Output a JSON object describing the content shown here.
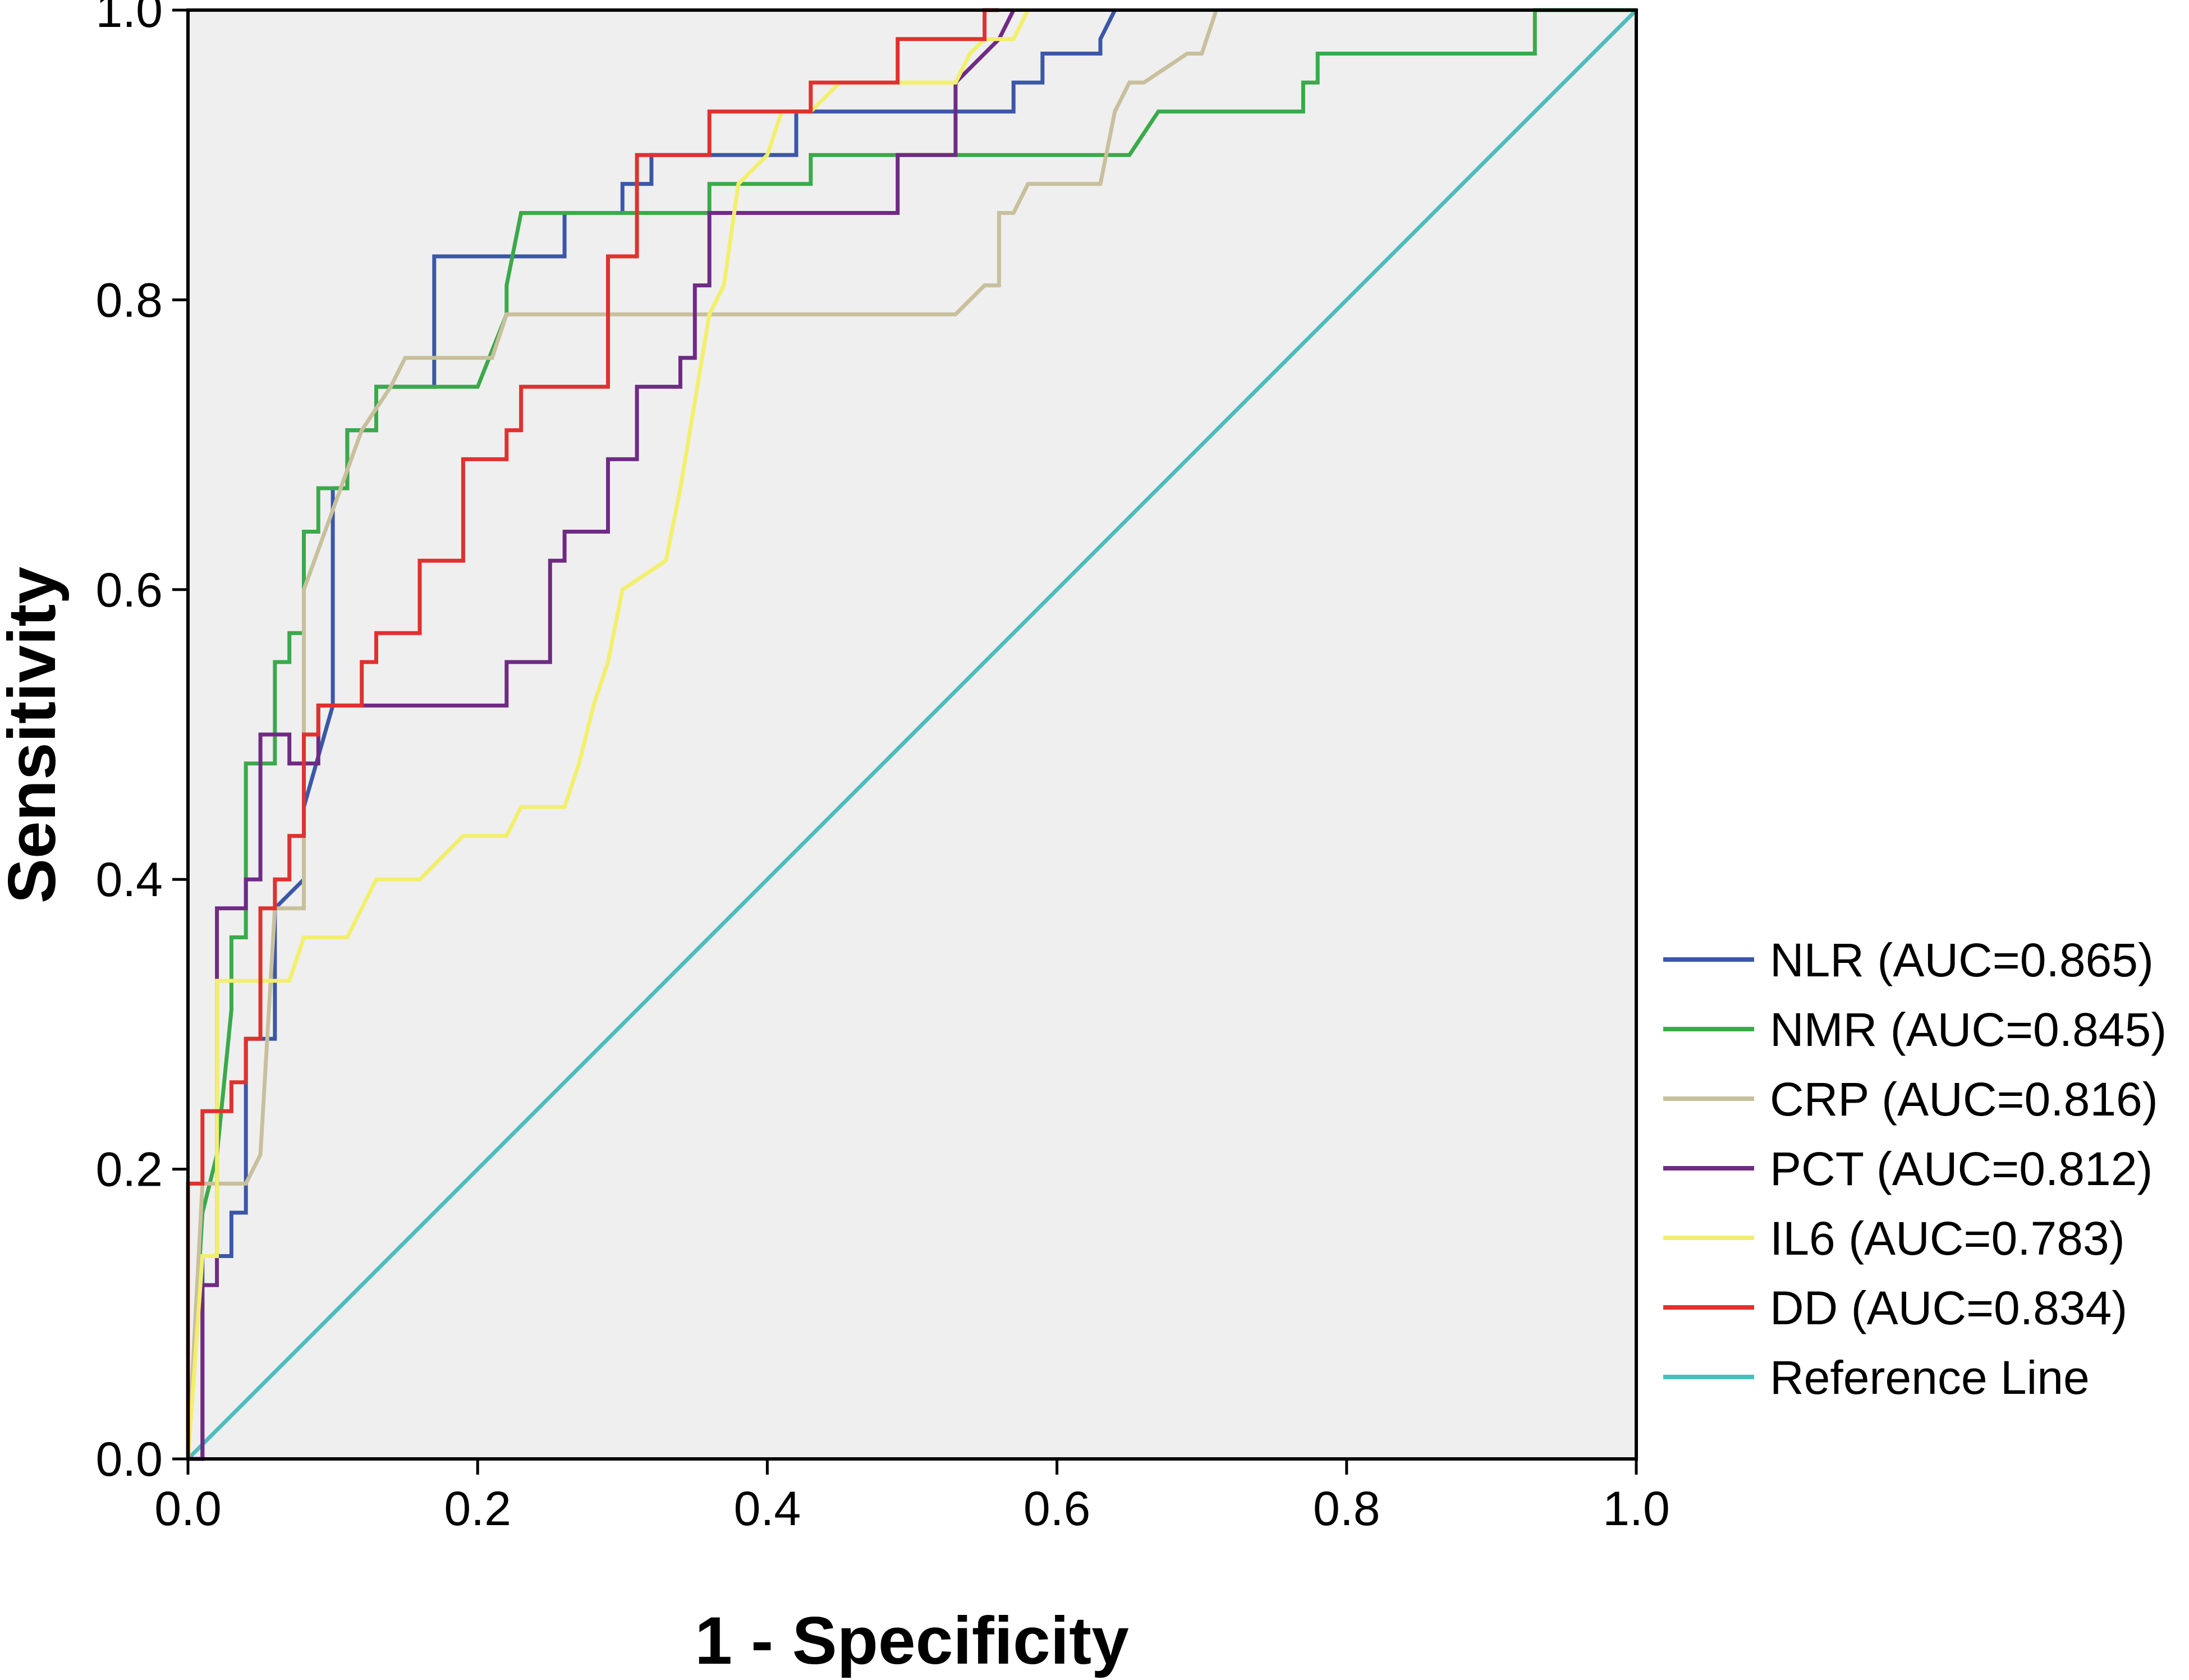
{
  "chart_data": {
    "type": "line",
    "title": "",
    "xlabel": "1 - Specificity",
    "ylabel": "Sensitivity",
    "xlim": [
      0,
      1
    ],
    "ylim": [
      0,
      1
    ],
    "xticks": [
      "0.0",
      "0.2",
      "0.4",
      "0.6",
      "0.8",
      "1.0"
    ],
    "yticks": [
      "0.0",
      "0.2",
      "0.4",
      "0.6",
      "0.8",
      "1.0"
    ],
    "grid": false,
    "legend_position": "bottom-right, outside plot",
    "background": "#efefef",
    "series": [
      {
        "name": "NLR (AUC=0.865)",
        "color": "#3b57a8",
        "x": [
          0,
          0.01,
          0.01,
          0.03,
          0.03,
          0.04,
          0.04,
          0.06,
          0.06,
          0.08,
          0.08,
          0.1,
          0.1,
          0.11,
          0.11,
          0.13,
          0.13,
          0.17,
          0.17,
          0.26,
          0.26,
          0.3,
          0.3,
          0.32,
          0.32,
          0.42,
          0.42,
          0.57,
          0.57,
          0.59,
          0.59,
          0.63,
          0.63,
          0.64
        ],
        "y": [
          0,
          0,
          0.14,
          0.14,
          0.17,
          0.17,
          0.29,
          0.29,
          0.38,
          0.4,
          0.45,
          0.52,
          0.67,
          0.67,
          0.71,
          0.71,
          0.74,
          0.74,
          0.83,
          0.83,
          0.86,
          0.86,
          0.88,
          0.88,
          0.9,
          0.9,
          0.93,
          0.93,
          0.95,
          0.95,
          0.97,
          0.97,
          0.98,
          1.0
        ]
      },
      {
        "name": "NMR (AUC=0.845)",
        "color": "#3aaa4a",
        "x": [
          0,
          0.01,
          0.01,
          0.02,
          0.02,
          0.03,
          0.03,
          0.04,
          0.04,
          0.06,
          0.06,
          0.07,
          0.07,
          0.08,
          0.08,
          0.09,
          0.09,
          0.11,
          0.11,
          0.13,
          0.13,
          0.16,
          0.16,
          0.2,
          0.22,
          0.22,
          0.23,
          0.36,
          0.36,
          0.43,
          0.43,
          0.65,
          0.67,
          0.77,
          0.77,
          0.78,
          0.78,
          0.93,
          0.93,
          1.0
        ],
        "y": [
          0,
          0.17,
          0.17,
          0.21,
          0.21,
          0.31,
          0.36,
          0.36,
          0.48,
          0.48,
          0.55,
          0.55,
          0.57,
          0.57,
          0.64,
          0.64,
          0.67,
          0.67,
          0.71,
          0.71,
          0.74,
          0.74,
          0.74,
          0.74,
          0.79,
          0.81,
          0.86,
          0.86,
          0.88,
          0.88,
          0.9,
          0.9,
          0.93,
          0.93,
          0.95,
          0.95,
          0.97,
          0.97,
          1.0,
          1.0
        ]
      },
      {
        "name": "CRP (AUC=0.816)",
        "color": "#c8c09c",
        "x": [
          0,
          0.01,
          0.01,
          0.04,
          0.05,
          0.06,
          0.08,
          0.08,
          0.12,
          0.12,
          0.14,
          0.15,
          0.21,
          0.22,
          0.53,
          0.55,
          0.56,
          0.56,
          0.57,
          0.58,
          0.63,
          0.64,
          0.65,
          0.66,
          0.69,
          0.7,
          0.71
        ],
        "y": [
          0,
          0.19,
          0.19,
          0.19,
          0.21,
          0.38,
          0.38,
          0.6,
          0.71,
          0.71,
          0.74,
          0.76,
          0.76,
          0.79,
          0.79,
          0.81,
          0.81,
          0.86,
          0.86,
          0.88,
          0.88,
          0.93,
          0.95,
          0.95,
          0.97,
          0.97,
          1.0
        ]
      },
      {
        "name": "PCT (AUC=0.812)",
        "color": "#6f2b84",
        "x": [
          0,
          0.01,
          0.01,
          0.02,
          0.02,
          0.04,
          0.04,
          0.05,
          0.05,
          0.07,
          0.07,
          0.09,
          0.09,
          0.1,
          0.1,
          0.22,
          0.22,
          0.25,
          0.25,
          0.26,
          0.26,
          0.29,
          0.29,
          0.31,
          0.31,
          0.34,
          0.34,
          0.35,
          0.35,
          0.36,
          0.36,
          0.49,
          0.49,
          0.53,
          0.53,
          0.56,
          0.57
        ],
        "y": [
          0,
          0,
          0.12,
          0.12,
          0.38,
          0.38,
          0.4,
          0.4,
          0.5,
          0.5,
          0.48,
          0.48,
          0.52,
          0.52,
          0.52,
          0.52,
          0.55,
          0.55,
          0.62,
          0.62,
          0.64,
          0.64,
          0.69,
          0.69,
          0.74,
          0.74,
          0.76,
          0.76,
          0.81,
          0.81,
          0.86,
          0.86,
          0.9,
          0.9,
          0.95,
          0.98,
          1.0
        ]
      },
      {
        "name": "IL6 (AUC=0.783)",
        "color": "#f2ef6d",
        "x": [
          0,
          0.01,
          0.02,
          0.02,
          0.04,
          0.07,
          0.08,
          0.11,
          0.12,
          0.13,
          0.16,
          0.19,
          0.22,
          0.23,
          0.26,
          0.27,
          0.28,
          0.29,
          0.3,
          0.33,
          0.34,
          0.36,
          0.37,
          0.38,
          0.4,
          0.4,
          0.41,
          0.43,
          0.45,
          0.46,
          0.47,
          0.53,
          0.54,
          0.55,
          0.57,
          0.58
        ],
        "y": [
          0,
          0.14,
          0.14,
          0.33,
          0.33,
          0.33,
          0.36,
          0.36,
          0.38,
          0.4,
          0.4,
          0.43,
          0.43,
          0.45,
          0.45,
          0.48,
          0.52,
          0.55,
          0.6,
          0.62,
          0.67,
          0.79,
          0.81,
          0.88,
          0.9,
          0.9,
          0.93,
          0.93,
          0.95,
          0.95,
          0.95,
          0.95,
          0.97,
          0.98,
          0.98,
          1.0
        ]
      },
      {
        "name": "DD (AUC=0.834)",
        "color": "#e0312f",
        "x": [
          0,
          0,
          0.01,
          0.01,
          0.03,
          0.03,
          0.04,
          0.04,
          0.05,
          0.05,
          0.06,
          0.06,
          0.07,
          0.07,
          0.08,
          0.08,
          0.09,
          0.09,
          0.12,
          0.12,
          0.13,
          0.13,
          0.15,
          0.16,
          0.16,
          0.19,
          0.19,
          0.22,
          0.22,
          0.23,
          0.23,
          0.29,
          0.29,
          0.31,
          0.31,
          0.36,
          0.36,
          0.43,
          0.43,
          0.49,
          0.49,
          0.55,
          0.55,
          0.56
        ],
        "y": [
          0,
          0.19,
          0.19,
          0.24,
          0.24,
          0.26,
          0.26,
          0.29,
          0.29,
          0.38,
          0.38,
          0.4,
          0.4,
          0.43,
          0.43,
          0.5,
          0.5,
          0.52,
          0.52,
          0.55,
          0.55,
          0.57,
          0.57,
          0.57,
          0.62,
          0.62,
          0.69,
          0.69,
          0.71,
          0.71,
          0.74,
          0.74,
          0.83,
          0.83,
          0.9,
          0.9,
          0.93,
          0.93,
          0.95,
          0.95,
          0.98,
          0.98,
          1.0,
          1.0
        ]
      },
      {
        "name": "Reference Line",
        "color": "#4dbcbc",
        "x": [
          0,
          1
        ],
        "y": [
          0,
          1
        ]
      }
    ]
  }
}
